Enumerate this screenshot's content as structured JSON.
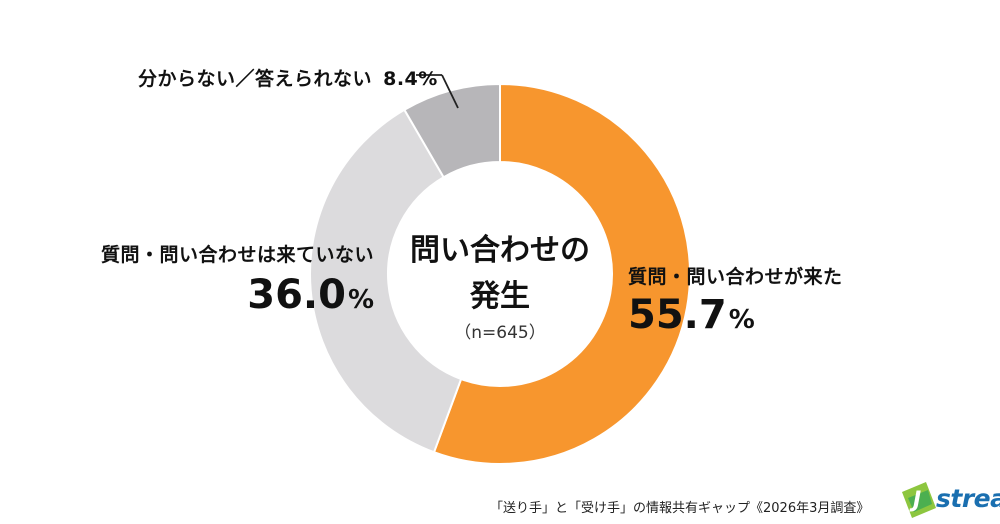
{
  "chart_data": {
    "type": "pie",
    "variant": "donut",
    "center_label": [
      "問い合わせの",
      "発生"
    ],
    "sample_size": "（n=645）",
    "slices": [
      {
        "label": "質問・問い合わせが来た",
        "value": 55.7,
        "value_text": "55.7",
        "unit": "%",
        "color": "#F7962E"
      },
      {
        "label": "質問・問い合わせは来ていない",
        "value": 36.0,
        "value_text": "36.0",
        "unit": "%",
        "color": "#DCDBDD"
      },
      {
        "label": "分からない／答えられない",
        "value": 8.4,
        "value_text": "8.4%",
        "color": "#B7B6B9"
      }
    ]
  },
  "source": "「送り手」と「受け手」の情報共有ギャップ《2026年3月調査》",
  "logo": {
    "text": "stream",
    "letter": "J"
  }
}
